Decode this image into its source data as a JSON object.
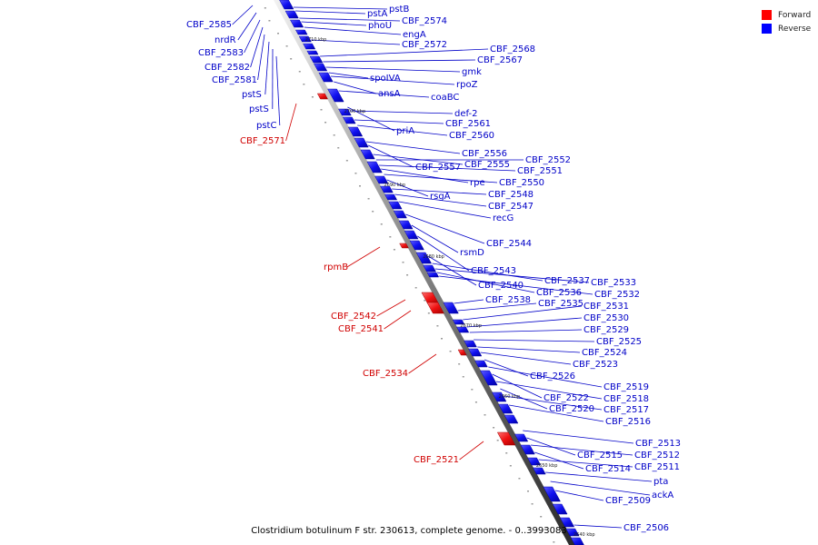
{
  "caption": "Clostridium botulinum F str. 230613, complete genome. - 0..3993083",
  "legend": [
    {
      "label": "Forward",
      "color": "#ff0000"
    },
    {
      "label": "Reverse",
      "color": "#0000ff"
    }
  ],
  "colors": {
    "reverse": "#1a1aee",
    "forward": "#e00000",
    "reverse_label": "#0000c8",
    "forward_label": "#d00000"
  },
  "ticks": [
    "2710 kbp",
    "2700 kbp",
    "2690 kbp",
    "2680 kbp",
    "2670 kbp",
    "2660 kbp",
    "2650 kbp",
    "2640 kbp"
  ],
  "reverse_genes": [
    "pstA",
    "pstB",
    "phoU",
    "CBF_2574",
    "engA",
    "CBF_2572",
    "CBF_2568",
    "CBF_2567",
    "gmk",
    "spoIVA",
    "rpoZ",
    "ansA",
    "coaBC",
    "def-2",
    "priA",
    "CBF_2561",
    "CBF_2560",
    "CBF_2556",
    "CBF_2557",
    "CBF_2555",
    "CBF_2552",
    "CBF_2551",
    "rpe",
    "CBF_2550",
    "rsgA",
    "CBF_2548",
    "CBF_2547",
    "recG",
    "CBF_2544",
    "rsmD",
    "CBF_2543",
    "CBF_2540",
    "CBF_2537",
    "CBF_2533",
    "CBF_2536",
    "CBF_2532",
    "CBF_2538",
    "CBF_2535",
    "CBF_2531",
    "CBF_2530",
    "CBF_2529",
    "CBF_2525",
    "CBF_2524",
    "CBF_2523",
    "CBF_2526",
    "CBF_2519",
    "CBF_2522",
    "CBF_2518",
    "CBF_2520",
    "CBF_2517",
    "CBF_2516",
    "CBF_2513",
    "CBF_2515",
    "CBF_2512",
    "CBF_2514",
    "CBF_2511",
    "pta",
    "ackA",
    "CBF_2509",
    "CBF_2506"
  ],
  "left_reverse_genes": [
    "CBF_2585",
    "nrdR",
    "CBF_2583",
    "CBF_2582",
    "CBF_2581",
    "pstS",
    "pstS",
    "pstC"
  ],
  "forward_genes": [
    "CBF_2571",
    "rpmB",
    "CBF_2542",
    "CBF_2541",
    "CBF_2534",
    "CBF_2521"
  ]
}
